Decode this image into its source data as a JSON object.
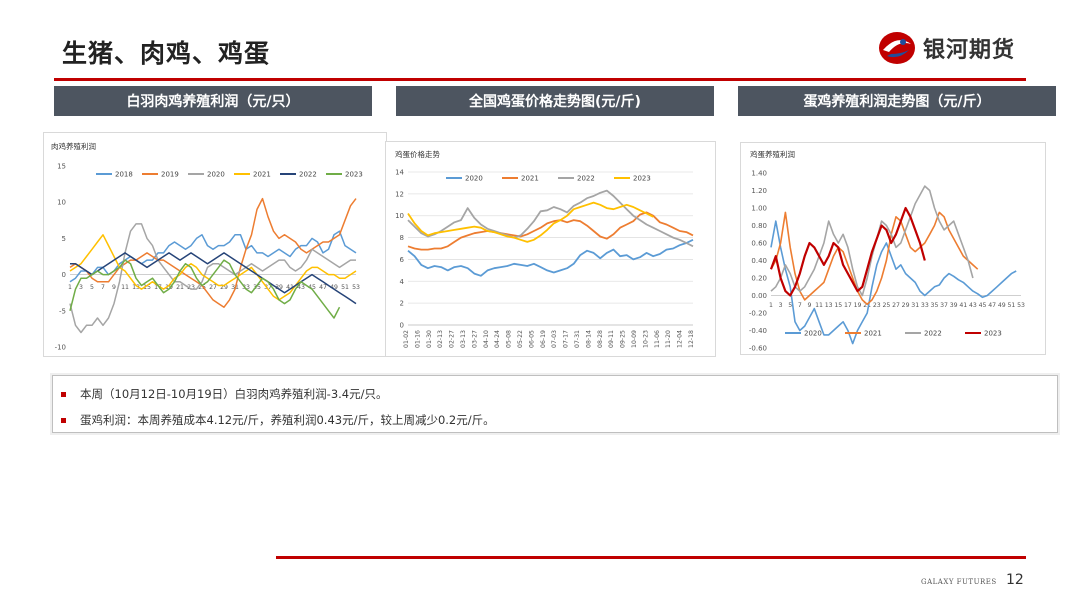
{
  "page": {
    "title": "生猪、肉鸡、鸡蛋",
    "logo_text": "银河期货",
    "footer_brand": "GALAXY FUTURES",
    "page_number": "12",
    "accent_color": "#c00000"
  },
  "panels": [
    {
      "header": "白羽肉鸡养殖利润（元/只）"
    },
    {
      "header": "全国鸡蛋价格走势图(元/斤)"
    },
    {
      "header": "蛋鸡养殖利润走势图（元/斤）"
    }
  ],
  "notes": [
    "本周（10月12日-10月19日）白羽肉鸡养殖利润-3.4元/只。",
    "蛋鸡利润：本周养殖成本4.12元/斤，养殖利润0.43元/斤，较上周减少0.2元/斤。"
  ],
  "chart_data": [
    {
      "type": "line",
      "title": "肉鸡养殖利润",
      "x_tick_labels": [
        "1",
        "3",
        "5",
        "7",
        "9",
        "11",
        "13",
        "15",
        "17",
        "19",
        "21",
        "23",
        "25",
        "27",
        "29",
        "31",
        "33",
        "35",
        "37",
        "39",
        "41",
        "43",
        "45",
        "47",
        "49",
        "51",
        "53"
      ],
      "ylim": [
        -10,
        15
      ],
      "yticks": [
        15,
        10,
        5,
        0,
        -5,
        -10
      ],
      "legend_position": "top",
      "grid": false,
      "series": [
        {
          "name": "2018",
          "color": "#5b9bd5",
          "values": [
            -1,
            -0.5,
            0.5,
            0.5,
            0,
            1,
            1,
            0,
            0.5,
            1.5,
            2,
            2.5,
            2,
            1.5,
            2,
            2,
            3,
            3,
            4,
            4.5,
            4,
            3.5,
            4,
            5,
            5.5,
            4,
            3.5,
            4,
            4,
            4.5,
            5.5,
            5.5,
            3.5,
            4,
            3,
            3,
            2.5,
            3,
            3.5,
            3,
            2.5,
            3.5,
            4,
            4,
            5,
            4.5,
            3,
            3.5,
            5.5,
            6,
            4,
            3.5,
            3
          ]
        },
        {
          "name": "2019",
          "color": "#ed7d31",
          "values": [
            1,
            1.5,
            1,
            0.5,
            -0.5,
            -1,
            -1,
            -1,
            0,
            1,
            1.5,
            2,
            2,
            2.5,
            3,
            2.5,
            2,
            2,
            1.5,
            1,
            0.5,
            0,
            -0.5,
            -1,
            -1.5,
            -2.5,
            -3.5,
            -4,
            -4.5,
            -3.5,
            -2,
            1,
            3.5,
            5.5,
            9,
            10.5,
            8,
            6,
            5,
            5.5,
            5,
            4.5,
            3.5,
            3,
            3.5,
            4,
            4.5,
            4.5,
            5,
            5.5,
            7.5,
            9.5,
            10.5
          ]
        },
        {
          "name": "2020",
          "color": "#a5a5a5",
          "values": [
            -4,
            -7,
            -8,
            -7,
            -7,
            -6,
            -7,
            -6,
            -4,
            -1,
            3,
            6,
            7,
            7,
            5,
            4,
            2,
            1,
            0,
            -1,
            -1,
            -1.5,
            -2,
            -2,
            -1,
            1,
            1.5,
            1.5,
            1,
            0.5,
            0,
            0.5,
            1,
            1.5,
            1,
            0.5,
            1,
            1.5,
            2,
            2,
            1,
            0.5,
            1,
            2,
            3.5,
            3,
            2.5,
            2,
            1.5,
            1,
            1.5,
            2,
            2
          ]
        },
        {
          "name": "2021",
          "color": "#ffc000",
          "values": [
            0.5,
            1,
            1.5,
            2.5,
            3.5,
            4.5,
            5.5,
            4,
            2.5,
            1,
            0.5,
            -0.5,
            -1.5,
            -2,
            -1.5,
            -1,
            -1.5,
            -2,
            -1.5,
            -0.5,
            0,
            1,
            1.5,
            1,
            0,
            -0.5,
            -1,
            -1.5,
            -1.5,
            -1,
            -0.5,
            0,
            0.5,
            1,
            0,
            -1,
            -2,
            -3,
            -3.5,
            -3,
            -2.5,
            -1.5,
            -0.5,
            0.5,
            1,
            1,
            0.5,
            0,
            0,
            -0.5,
            -0.5,
            0,
            0.5
          ]
        },
        {
          "name": "2022",
          "color": "#264478",
          "values": [
            1.5,
            1.5,
            1,
            0.5,
            0,
            0.5,
            1,
            1.5,
            2,
            2.5,
            3,
            2.5,
            2,
            1.5,
            1,
            1.5,
            2,
            2.5,
            3,
            2.5,
            2,
            2.5,
            3,
            2.5,
            2,
            1.5,
            2,
            2.5,
            3,
            2.5,
            2,
            1.5,
            1,
            0.5,
            0,
            -0.5,
            -1,
            -1.5,
            -2,
            -2.5,
            -2,
            -1.5,
            -1,
            -0.5,
            0,
            -0.5,
            -1,
            -1.5,
            -2,
            -2.5,
            -3,
            -3.5,
            -4
          ]
        },
        {
          "name": "2023",
          "color": "#70ad47",
          "values": [
            -5,
            -2,
            -0.5,
            -0.5,
            0,
            0.5,
            0,
            0,
            0.5,
            1,
            2,
            1.5,
            -0.5,
            -1.5,
            -1,
            -0.5,
            -1.5,
            -2.5,
            -2,
            -1,
            0.5,
            1.5,
            1,
            -0.5,
            -1.5,
            -1,
            0,
            1,
            2,
            1.5,
            0,
            -1,
            -2,
            -2.5,
            -1.5,
            -0.5,
            -1,
            -2,
            -3.5,
            -4,
            -3.5,
            -2,
            -1,
            -1.5,
            -2,
            -3,
            -4,
            -5,
            -6,
            -4.5
          ]
        }
      ]
    },
    {
      "type": "line",
      "title": "鸡蛋价格走势",
      "x_tick_labels": [
        "01-02",
        "01-16",
        "01-30",
        "02-13",
        "02-27",
        "03-13",
        "03-27",
        "04-10",
        "04-24",
        "05-08",
        "05-22",
        "06-05",
        "06-19",
        "07-03",
        "07-17",
        "07-31",
        "08-14",
        "08-28",
        "09-11",
        "09-25",
        "10-09",
        "10-23",
        "11-06",
        "11-20",
        "12-04",
        "12-18"
      ],
      "ylim": [
        0,
        14
      ],
      "yticks": [
        0,
        2,
        4,
        6,
        8,
        10,
        12,
        14
      ],
      "legend_position": "top",
      "grid": true,
      "series": [
        {
          "name": "2020",
          "color": "#5b9bd5",
          "values": [
            6.8,
            6.3,
            5.5,
            5.2,
            5.4,
            5.3,
            5.0,
            5.3,
            5.4,
            5.2,
            4.7,
            4.5,
            5.0,
            5.2,
            5.3,
            5.4,
            5.6,
            5.5,
            5.4,
            5.6,
            5.3,
            5.0,
            4.8,
            5.0,
            5.2,
            5.6,
            6.4,
            6.8,
            6.6,
            6.1,
            6.6,
            6.9,
            6.3,
            6.4,
            6.0,
            6.2,
            6.6,
            6.3,
            6.5,
            6.9,
            7.0,
            7.3,
            7.5,
            7.8
          ]
        },
        {
          "name": "2021",
          "color": "#ed7d31",
          "values": [
            7.2,
            7.0,
            6.9,
            6.9,
            7.0,
            7.0,
            7.2,
            7.6,
            8.0,
            8.2,
            8.4,
            8.5,
            8.6,
            8.5,
            8.4,
            8.3,
            8.2,
            8.1,
            8.3,
            8.6,
            8.9,
            9.3,
            9.5,
            9.6,
            9.4,
            9.6,
            9.5,
            9.1,
            8.6,
            8.1,
            7.9,
            8.3,
            8.9,
            9.2,
            9.5,
            10.1,
            10.3,
            10.0,
            9.4,
            9.2,
            8.9,
            8.6,
            8.5,
            8.2
          ]
        },
        {
          "name": "2022",
          "color": "#a5a5a5",
          "values": [
            9.6,
            9.0,
            8.4,
            8.1,
            8.3,
            8.6,
            9.0,
            9.4,
            9.6,
            10.7,
            9.8,
            9.2,
            8.8,
            8.6,
            8.4,
            8.2,
            8.0,
            8.2,
            8.8,
            9.5,
            10.4,
            10.5,
            10.8,
            10.6,
            10.3,
            10.9,
            11.2,
            11.6,
            11.8,
            12.1,
            12.3,
            11.8,
            11.2,
            10.6,
            10.0,
            9.6,
            9.2,
            8.9,
            8.6,
            8.3,
            8.0,
            7.8,
            7.5,
            7.2
          ]
        },
        {
          "name": "2023",
          "color": "#ffc000",
          "values": [
            10.2,
            9.3,
            8.6,
            8.2,
            8.4,
            8.5,
            8.6,
            8.7,
            8.8,
            8.9,
            9.0,
            8.9,
            8.6,
            8.5,
            8.3,
            8.1,
            8.0,
            7.8,
            7.6,
            7.8,
            8.2,
            8.7,
            9.3,
            9.6,
            10.0,
            10.6,
            10.8,
            11.0,
            11.2,
            11.0,
            10.7,
            10.6,
            10.8,
            11.0,
            10.8,
            10.5,
            10.2,
            9.9
          ]
        }
      ]
    },
    {
      "type": "line",
      "title": "鸡蛋养殖利润",
      "x_tick_labels": [
        "1",
        "3",
        "5",
        "7",
        "9",
        "11",
        "13",
        "15",
        "17",
        "19",
        "21",
        "23",
        "25",
        "27",
        "29",
        "31",
        "33",
        "35",
        "37",
        "39",
        "41",
        "43",
        "45",
        "47",
        "49",
        "51",
        "53"
      ],
      "ylim": [
        -0.6,
        1.4
      ],
      "yticks": [
        1.4,
        1.2,
        1.0,
        0.8,
        0.6,
        0.4,
        0.2,
        0.0,
        -0.2,
        -0.4,
        -0.6
      ],
      "legend_position": "bottom",
      "grid": false,
      "series": [
        {
          "name": "2020",
          "color": "#5b9bd5",
          "values": [
            0.55,
            0.85,
            0.55,
            0.3,
            0.1,
            -0.3,
            -0.4,
            -0.35,
            -0.25,
            -0.15,
            -0.3,
            -0.45,
            -0.45,
            -0.4,
            -0.35,
            -0.3,
            -0.4,
            -0.55,
            -0.4,
            -0.3,
            -0.2,
            0.1,
            0.35,
            0.5,
            0.6,
            0.45,
            0.3,
            0.35,
            0.25,
            0.2,
            0.15,
            0.05,
            0.0,
            0.05,
            0.1,
            0.12,
            0.2,
            0.25,
            0.22,
            0.18,
            0.15,
            0.1,
            0.05,
            0.02,
            -0.02,
            0.0,
            0.05,
            0.1,
            0.15,
            0.2,
            0.25,
            0.28
          ]
        },
        {
          "name": "2021",
          "color": "#ed7d31",
          "values": [
            0.3,
            0.4,
            0.6,
            0.95,
            0.55,
            0.25,
            0.05,
            -0.05,
            0.0,
            0.05,
            0.1,
            0.15,
            0.3,
            0.45,
            0.55,
            0.5,
            0.35,
            0.2,
            0.05,
            -0.05,
            -0.1,
            -0.05,
            0.05,
            0.2,
            0.4,
            0.7,
            0.9,
            0.85,
            0.7,
            0.55,
            0.5,
            0.55,
            0.6,
            0.7,
            0.8,
            0.95,
            0.9,
            0.75,
            0.65,
            0.55,
            0.45,
            0.4,
            0.35,
            0.3
          ]
        },
        {
          "name": "2022",
          "color": "#a5a5a5",
          "values": [
            0.05,
            0.1,
            0.2,
            0.35,
            0.25,
            0.1,
            0.05,
            0.1,
            0.2,
            0.3,
            0.45,
            0.6,
            0.85,
            0.7,
            0.6,
            0.7,
            0.55,
            0.3,
            0.1,
            0.0,
            0.2,
            0.45,
            0.65,
            0.85,
            0.8,
            0.7,
            0.55,
            0.6,
            0.75,
            0.9,
            1.05,
            1.15,
            1.25,
            1.2,
            1.0,
            0.85,
            0.75,
            0.8,
            0.85,
            0.7,
            0.55,
            0.4,
            0.2
          ]
        },
        {
          "name": "2023",
          "color": "#c00000",
          "values": [
            0.3,
            0.45,
            0.2,
            0.05,
            0.0,
            0.1,
            0.25,
            0.45,
            0.6,
            0.55,
            0.45,
            0.35,
            0.45,
            0.6,
            0.55,
            0.35,
            0.25,
            0.15,
            0.05,
            0.1,
            0.3,
            0.5,
            0.65,
            0.8,
            0.75,
            0.6,
            0.7,
            0.85,
            1.0,
            0.9,
            0.75,
            0.6,
            0.4
          ]
        }
      ]
    }
  ]
}
